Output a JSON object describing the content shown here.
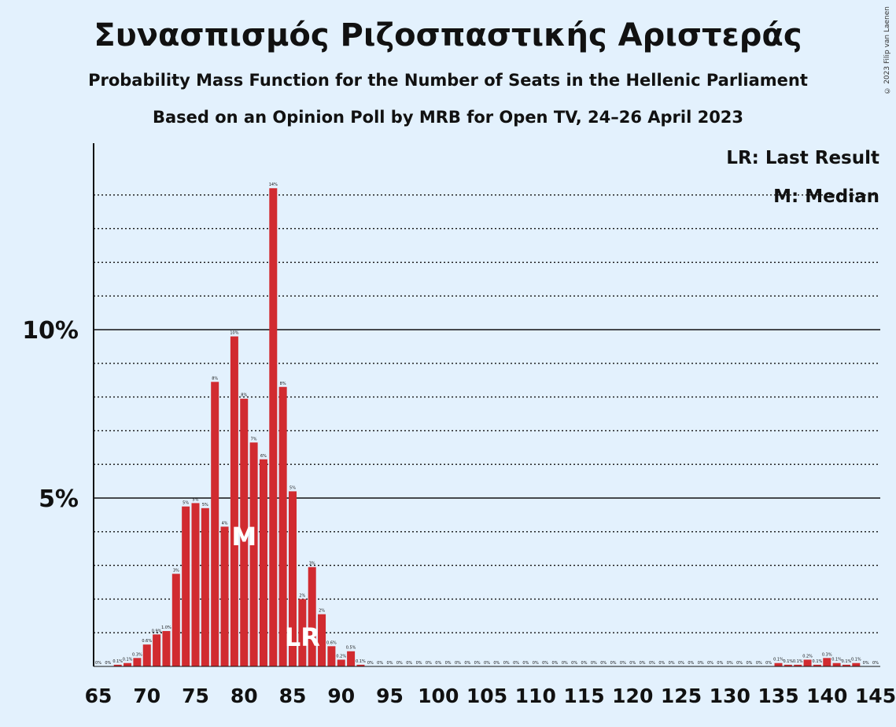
{
  "header": {
    "title": "Συνασπισμός Ριζοσπαστικής Αριστεράς",
    "subtitle": "Probability Mass Function for the Number of Seats in the Hellenic Parliament",
    "subtitle2": "Based on an Opinion Poll by MRB for Open TV, 24–26 April 2023",
    "copyright": "© 2023 Filip van Laenen"
  },
  "legend": {
    "last_result": "LR: Last Result",
    "median": "M: Median"
  },
  "colors": {
    "background": "#e3f1fd",
    "bar": "#d12b30",
    "axis": "#111111"
  },
  "chart_data": {
    "type": "bar",
    "x": [
      65,
      66,
      67,
      68,
      69,
      70,
      71,
      72,
      73,
      74,
      75,
      76,
      77,
      78,
      79,
      80,
      81,
      82,
      83,
      84,
      85,
      86,
      87,
      88,
      89,
      90,
      91,
      92,
      93,
      94,
      95,
      96,
      97,
      98,
      99,
      100,
      101,
      102,
      103,
      104,
      105,
      106,
      107,
      108,
      109,
      110,
      111,
      112,
      113,
      114,
      115,
      116,
      117,
      118,
      119,
      120,
      121,
      122,
      123,
      124,
      125,
      126,
      127,
      128,
      129,
      130,
      131,
      132,
      133,
      134,
      135,
      136,
      137,
      138,
      139,
      140,
      141,
      142,
      143,
      144,
      145
    ],
    "values": [
      0,
      0,
      0.05,
      0.1,
      0.25,
      0.65,
      0.95,
      1.05,
      2.75,
      4.75,
      4.85,
      4.7,
      8.45,
      4.15,
      9.8,
      7.95,
      6.65,
      6.15,
      14.2,
      8.3,
      5.2,
      2.0,
      2.95,
      1.55,
      0.6,
      0.2,
      0.45,
      0.05,
      0,
      0,
      0,
      0,
      0,
      0,
      0,
      0,
      0,
      0,
      0,
      0,
      0,
      0,
      0,
      0,
      0,
      0,
      0,
      0,
      0,
      0,
      0,
      0,
      0,
      0,
      0,
      0,
      0,
      0,
      0,
      0,
      0,
      0,
      0,
      0,
      0,
      0,
      0,
      0,
      0,
      0,
      0.1,
      0.05,
      0.05,
      0.2,
      0.05,
      0.25,
      0.1,
      0.05,
      0.1,
      0,
      0
    ],
    "labels": [
      "0%",
      "0%",
      "0.1%",
      "0.1%",
      "0.3%",
      "0.6%",
      "0.9%",
      "1.0%",
      "3%",
      "5%",
      "5%",
      "5%",
      "8%",
      "4%",
      "10%",
      "8%",
      "7%",
      "6%",
      "14%",
      "8%",
      "5%",
      "2%",
      "3%",
      "2%",
      "0.6%",
      "0.2%",
      "0.5%",
      "0.1%",
      "0%",
      "0%",
      "0%",
      "0%",
      "0%",
      "0%",
      "0%",
      "0%",
      "0%",
      "0%",
      "0%",
      "0%",
      "0%",
      "0%",
      "0%",
      "0%",
      "0%",
      "0%",
      "0%",
      "0%",
      "0%",
      "0%",
      "0%",
      "0%",
      "0%",
      "0%",
      "0%",
      "0%",
      "0%",
      "0%",
      "0%",
      "0%",
      "0%",
      "0%",
      "0%",
      "0%",
      "0%",
      "0%",
      "0%",
      "0%",
      "0%",
      "0%",
      "0.1%",
      "0.1%",
      "0.1%",
      "0.2%",
      "0.1%",
      "0.3%",
      "0.1%",
      "0.1%",
      "0.1%",
      "0%",
      "0%"
    ],
    "xticks": [
      65,
      70,
      75,
      80,
      85,
      90,
      95,
      100,
      105,
      110,
      115,
      120,
      125,
      130,
      135,
      140,
      145
    ],
    "ytick_labels": [
      "5%",
      "10%"
    ],
    "ytick_values": [
      5,
      10
    ],
    "ylim": [
      0,
      15.5
    ],
    "median": 80,
    "median_label": "M",
    "last_result": 86,
    "last_result_label": "LR"
  }
}
